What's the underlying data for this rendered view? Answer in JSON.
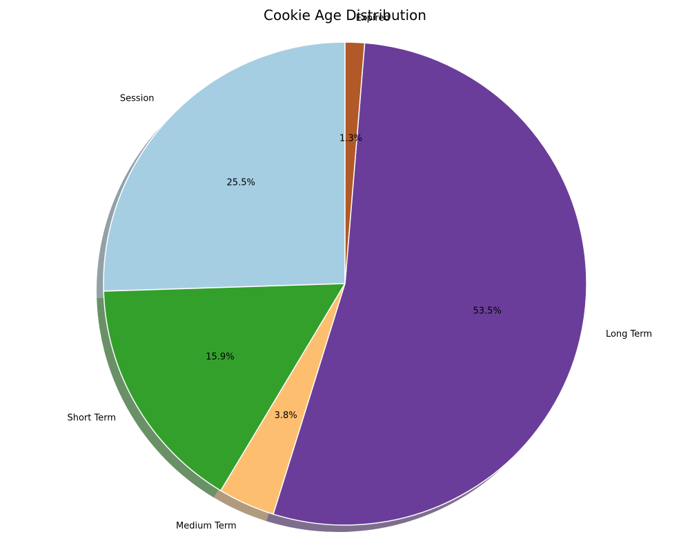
{
  "chart_data": {
    "type": "pie",
    "title": "Cookie Age Distribution",
    "start_angle_deg": 90,
    "direction": "counterclockwise",
    "shadow": true,
    "slices": [
      {
        "label": "Session",
        "value": 25.5,
        "pct_label": "25.5%",
        "color": "#a6cee3"
      },
      {
        "label": "Short Term",
        "value": 15.9,
        "pct_label": "15.9%",
        "color": "#33a02c"
      },
      {
        "label": "Medium Term",
        "value": 3.8,
        "pct_label": "3.8%",
        "color": "#fdbf6f"
      },
      {
        "label": "Long Term",
        "value": 53.5,
        "pct_label": "53.5%",
        "color": "#6a3d9a"
      },
      {
        "label": "Expired",
        "value": 1.3,
        "pct_label": "1.3%",
        "color": "#b15928"
      }
    ]
  }
}
